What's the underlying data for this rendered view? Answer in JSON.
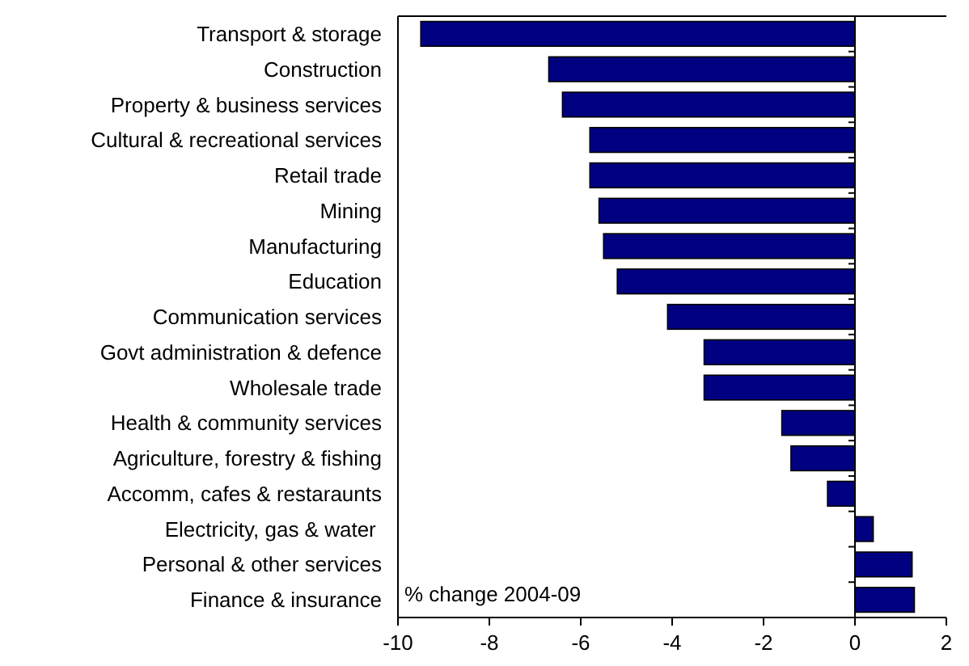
{
  "chart_data": {
    "type": "bar",
    "orientation": "horizontal",
    "categories": [
      "Transport & storage",
      "Construction",
      "Property & business services",
      "Cultural & recreational services",
      "Retail trade",
      "Mining",
      "Manufacturing",
      "Education",
      "Communication services",
      "Govt administration & defence",
      "Wholesale trade",
      "Health & community services",
      "Agriculture, forestry & fishing",
      "Accomm, cafes & restaraunts",
      "Electricity, gas & water ",
      "Personal & other services",
      "Finance & insurance"
    ],
    "values": [
      -9.5,
      -6.7,
      -6.4,
      -5.8,
      -5.8,
      -5.6,
      -5.5,
      -5.2,
      -4.1,
      -3.3,
      -3.3,
      -1.6,
      -1.4,
      -0.6,
      0.4,
      1.25,
      1.3
    ],
    "color": "#000080",
    "xlim": [
      -10,
      2
    ],
    "xticks": [
      -10,
      -8,
      -6,
      -4,
      -2,
      0,
      2
    ],
    "annotations": [
      "% change 2004-09"
    ]
  }
}
